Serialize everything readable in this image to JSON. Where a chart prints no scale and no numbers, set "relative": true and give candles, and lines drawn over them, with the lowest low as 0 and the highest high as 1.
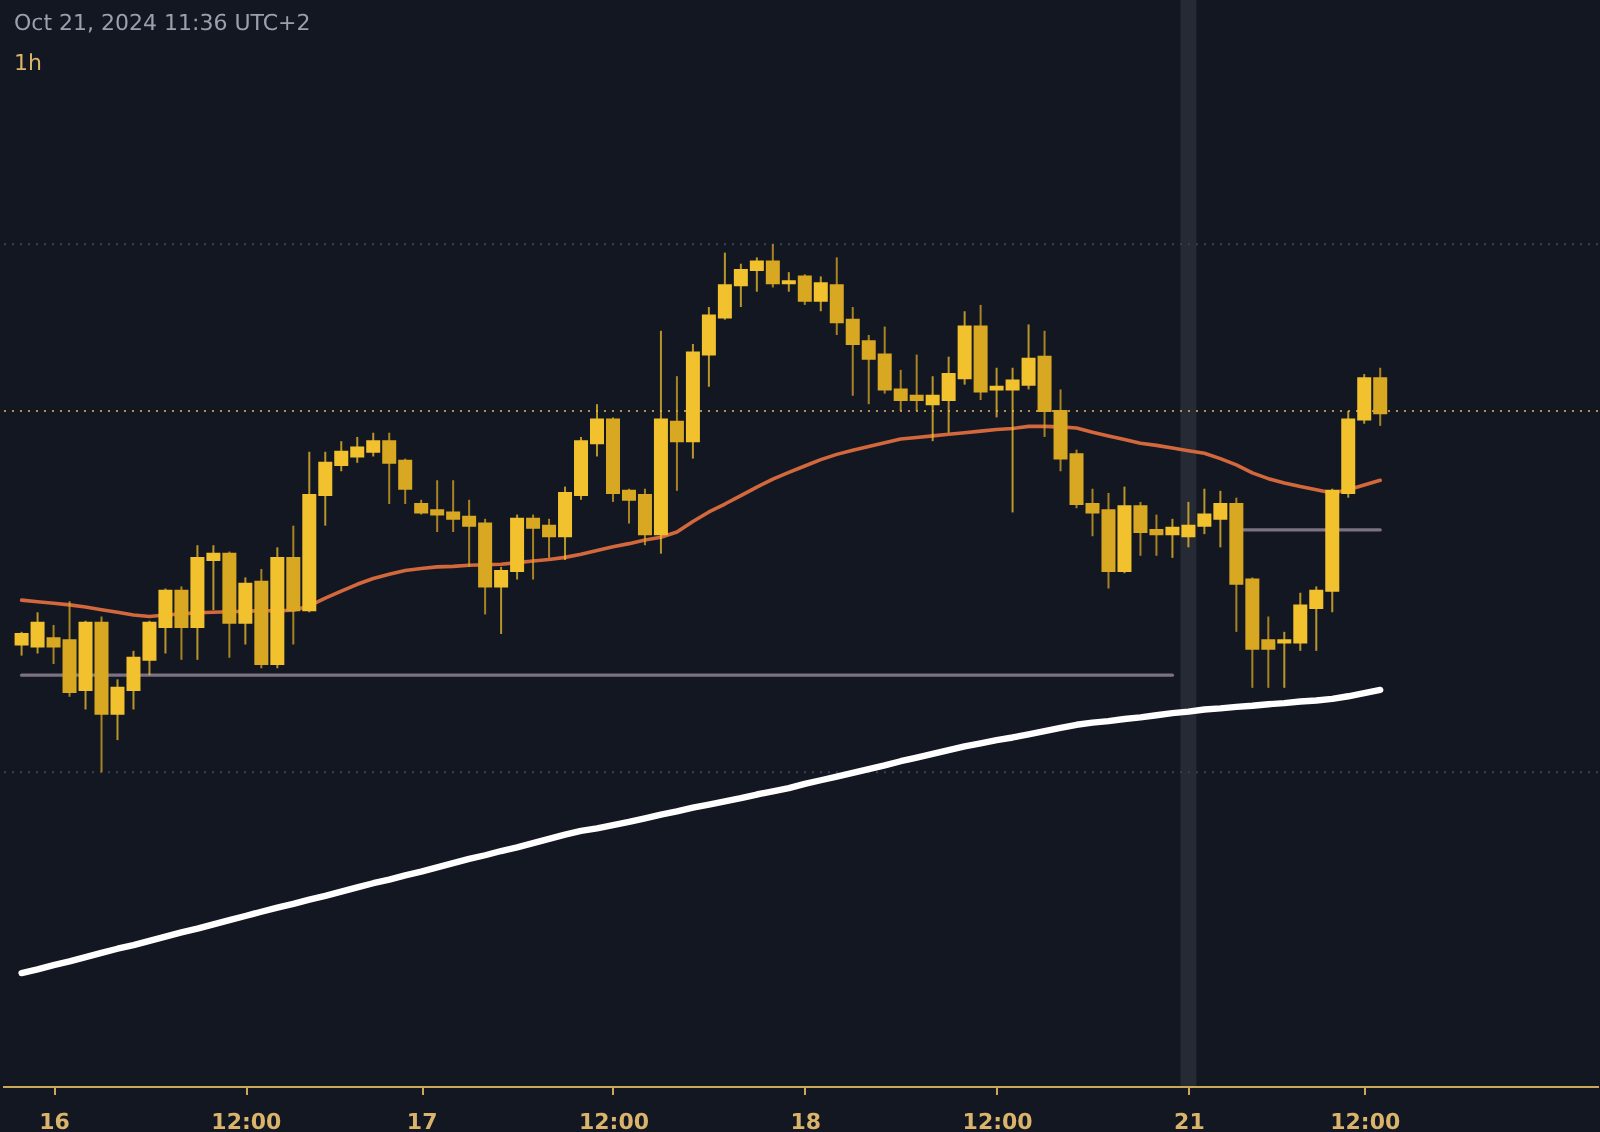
{
  "chart_data": {
    "type": "candlestick",
    "relative": true,
    "colors": [
      "#f2c12e",
      "#f2c12e",
      "#d9a823",
      "#d9a823",
      "#f2c12e",
      "#d9a823",
      "#f2c12e",
      "#f2c12e",
      "#f2c12e",
      "#f2c12e",
      "#d9a823",
      "#f2c12e",
      "#f2c12e",
      "#d9a823",
      "#f2c12e",
      "#d9a823",
      "#f2c12e",
      "#d9a823",
      "#f2c12e",
      "#f2c12e",
      "#f2c12e",
      "#f2c12e",
      "#f2c12e",
      "#d9a823",
      "#d9a823",
      "#d9a823",
      "#d9a823",
      "#d9a823",
      "#d9a823",
      "#d9a823",
      "#f2c12e",
      "#f2c12e",
      "#d9a823",
      "#d9a823",
      "#f2c12e",
      "#f2c12e",
      "#f2c12e",
      "#d9a823",
      "#d9a823",
      "#d9a823",
      "#f2c12e",
      "#d9a823",
      "#f2c12e",
      "#f2c12e",
      "#f2c12e",
      "#f2c12e",
      "#f2c12e",
      "#d9a823",
      "#f2c12e",
      "#d9a823",
      "#f2c12e",
      "#d9a823",
      "#d9a823",
      "#d9a823",
      "#d9a823",
      "#d9a823",
      "#d9a823",
      "#f2c12e",
      "#f2c12e",
      "#f2c12e",
      "#d9a823",
      "#f2c12e",
      "#f2c12e",
      "#f2c12e",
      "#d9a823",
      "#d9a823",
      "#d9a823",
      "#d9a823",
      "#d9a823",
      "#f2c12e",
      "#d9a823",
      "#d9a823",
      "#f2c12e",
      "#f2c12e",
      "#f2c12e",
      "#f2c12e",
      "#d9a823",
      "#d9a823",
      "#d9a823",
      "#f2c12e",
      "#f2c12e",
      "#f2c12e",
      "#f2c12e",
      "#f2c12e",
      "#f2c12e",
      "#d9a823"
    ],
    "annotations": [
      "Oct 21, 2024 11:36 UTC+2",
      "1h"
    ],
    "categories": [
      null,
      null,
      "16",
      null,
      null,
      null,
      null,
      null,
      null,
      null,
      null,
      null,
      null,
      null,
      "12:00",
      null,
      null,
      null,
      null,
      null,
      null,
      null,
      null,
      null,
      null,
      "17",
      null,
      null,
      null,
      null,
      null,
      null,
      null,
      null,
      null,
      null,
      null,
      "12:00",
      null,
      null,
      null,
      null,
      null,
      null,
      null,
      null,
      null,
      null,
      null,
      "18",
      null,
      null,
      null,
      null,
      null,
      null,
      null,
      null,
      null,
      null,
      null,
      "12:00",
      null,
      null,
      null,
      null,
      null,
      null,
      null,
      null,
      null,
      null,
      null,
      "21",
      null,
      null,
      null,
      null,
      null,
      null,
      null,
      null,
      null,
      null,
      "12:00",
      null
    ],
    "ohlc": [
      [
        0.242,
        0.266,
        0.221,
        0.262
      ],
      [
        0.238,
        0.303,
        0.225,
        0.283
      ],
      [
        0.254,
        0.279,
        0.205,
        0.238
      ],
      [
        0.25,
        0.324,
        0.143,
        0.152
      ],
      [
        0.156,
        0.287,
        0.119,
        0.283
      ],
      [
        0.283,
        0.295,
        0.0,
        0.111
      ],
      [
        0.111,
        0.176,
        0.061,
        0.16
      ],
      [
        0.156,
        0.23,
        0.119,
        0.217
      ],
      [
        0.213,
        0.287,
        0.184,
        0.283
      ],
      [
        0.275,
        0.348,
        0.225,
        0.344
      ],
      [
        0.344,
        0.352,
        0.213,
        0.275
      ],
      [
        0.275,
        0.43,
        0.213,
        0.406
      ],
      [
        0.402,
        0.43,
        0.307,
        0.414
      ],
      [
        0.414,
        0.418,
        0.217,
        0.283
      ],
      [
        0.283,
        0.369,
        0.242,
        0.357
      ],
      [
        0.361,
        0.385,
        0.197,
        0.205
      ],
      [
        0.205,
        0.426,
        0.197,
        0.406
      ],
      [
        0.406,
        0.467,
        0.242,
        0.307
      ],
      [
        0.307,
        0.607,
        0.303,
        0.525
      ],
      [
        0.525,
        0.607,
        0.467,
        0.586
      ],
      [
        0.582,
        0.627,
        0.57,
        0.607
      ],
      [
        0.598,
        0.635,
        0.586,
        0.615
      ],
      [
        0.607,
        0.643,
        0.598,
        0.627
      ],
      [
        0.627,
        0.643,
        0.508,
        0.586
      ],
      [
        0.59,
        0.594,
        0.508,
        0.537
      ],
      [
        0.508,
        0.516,
        0.488,
        0.492
      ],
      [
        0.496,
        0.553,
        0.455,
        0.488
      ],
      [
        0.492,
        0.553,
        0.455,
        0.48
      ],
      [
        0.484,
        0.516,
        0.389,
        0.467
      ],
      [
        0.471,
        0.48,
        0.299,
        0.352
      ],
      [
        0.352,
        0.389,
        0.262,
        0.381
      ],
      [
        0.381,
        0.488,
        0.365,
        0.48
      ],
      [
        0.48,
        0.488,
        0.365,
        0.463
      ],
      [
        0.467,
        0.48,
        0.406,
        0.447
      ],
      [
        0.447,
        0.541,
        0.402,
        0.529
      ],
      [
        0.525,
        0.635,
        0.516,
        0.627
      ],
      [
        0.623,
        0.697,
        0.598,
        0.668
      ],
      [
        0.668,
        0.672,
        0.512,
        0.529
      ],
      [
        0.533,
        0.537,
        0.471,
        0.516
      ],
      [
        0.525,
        0.537,
        0.43,
        0.451
      ],
      [
        0.451,
        0.836,
        0.414,
        0.668
      ],
      [
        0.664,
        0.75,
        0.533,
        0.627
      ],
      [
        0.627,
        0.811,
        0.594,
        0.795
      ],
      [
        0.791,
        0.881,
        0.73,
        0.865
      ],
      [
        0.861,
        0.984,
        0.857,
        0.922
      ],
      [
        0.922,
        0.963,
        0.881,
        0.951
      ],
      [
        0.951,
        0.975,
        0.91,
        0.967
      ],
      [
        0.967,
        1.0,
        0.918,
        0.926
      ],
      [
        0.926,
        0.947,
        0.91,
        0.93
      ],
      [
        0.939,
        0.943,
        0.885,
        0.893
      ],
      [
        0.893,
        0.939,
        0.873,
        0.926
      ],
      [
        0.922,
        0.975,
        0.828,
        0.852
      ],
      [
        0.857,
        0.881,
        0.713,
        0.811
      ],
      [
        0.816,
        0.828,
        0.697,
        0.783
      ],
      [
        0.791,
        0.844,
        0.717,
        0.725
      ],
      [
        0.725,
        0.762,
        0.684,
        0.705
      ],
      [
        0.713,
        0.791,
        0.684,
        0.705
      ],
      [
        0.697,
        0.75,
        0.627,
        0.713
      ],
      [
        0.705,
        0.787,
        0.643,
        0.754
      ],
      [
        0.746,
        0.873,
        0.734,
        0.844
      ],
      [
        0.844,
        0.885,
        0.705,
        0.721
      ],
      [
        0.725,
        0.766,
        0.672,
        0.73
      ],
      [
        0.725,
        0.766,
        0.492,
        0.742
      ],
      [
        0.734,
        0.848,
        0.725,
        0.783
      ],
      [
        0.787,
        0.836,
        0.635,
        0.684
      ],
      [
        0.684,
        0.725,
        0.57,
        0.594
      ],
      [
        0.602,
        0.611,
        0.5,
        0.508
      ],
      [
        0.508,
        0.537,
        0.447,
        0.492
      ],
      [
        0.496,
        0.529,
        0.348,
        0.381
      ],
      [
        0.381,
        0.541,
        0.377,
        0.504
      ],
      [
        0.504,
        0.512,
        0.41,
        0.455
      ],
      [
        0.459,
        0.488,
        0.41,
        0.451
      ],
      [
        0.451,
        0.48,
        0.406,
        0.463
      ],
      [
        0.447,
        0.512,
        0.426,
        0.467
      ],
      [
        0.467,
        0.537,
        0.451,
        0.488
      ],
      [
        0.48,
        0.533,
        0.426,
        0.508
      ],
      [
        0.508,
        0.52,
        0.266,
        0.357
      ],
      [
        0.365,
        0.369,
        0.16,
        0.234
      ],
      [
        0.25,
        0.295,
        0.16,
        0.234
      ],
      [
        0.246,
        0.266,
        0.16,
        0.25
      ],
      [
        0.246,
        0.34,
        0.23,
        0.316
      ],
      [
        0.311,
        0.352,
        0.23,
        0.344
      ],
      [
        0.344,
        0.537,
        0.303,
        0.533
      ],
      [
        0.529,
        0.684,
        0.52,
        0.668
      ],
      [
        0.668,
        0.754,
        0.66,
        0.746
      ],
      [
        0.746,
        0.766,
        0.656,
        0.68
      ]
    ],
    "series": [
      {
        "type": "line",
        "color": "#d2683c",
        "values": [
          0.326,
          0.323,
          0.32,
          0.317,
          0.313,
          0.308,
          0.303,
          0.298,
          0.295,
          0.298,
          0.3,
          0.302,
          0.303,
          0.304,
          0.305,
          0.306,
          0.306,
          0.307,
          0.315,
          0.33,
          0.343,
          0.356,
          0.367,
          0.375,
          0.382,
          0.386,
          0.389,
          0.39,
          0.392,
          0.393,
          0.394,
          0.397,
          0.4,
          0.403,
          0.407,
          0.413,
          0.42,
          0.427,
          0.433,
          0.44,
          0.445,
          0.455,
          0.475,
          0.493,
          0.508,
          0.524,
          0.54,
          0.555,
          0.568,
          0.58,
          0.592,
          0.602,
          0.61,
          0.617,
          0.624,
          0.631,
          0.634,
          0.637,
          0.64,
          0.643,
          0.646,
          0.649,
          0.651,
          0.655,
          0.655,
          0.654,
          0.652,
          0.644,
          0.637,
          0.63,
          0.623,
          0.619,
          0.614,
          0.609,
          0.604,
          0.594,
          0.582,
          0.567,
          0.556,
          0.548,
          0.541,
          0.535,
          0.529,
          0.535,
          0.544,
          0.553
        ]
      },
      {
        "type": "line",
        "color": "#ffffff",
        "values": [
          -0.38,
          -0.373,
          -0.365,
          -0.358,
          -0.35,
          -0.342,
          -0.334,
          -0.327,
          -0.319,
          -0.311,
          -0.303,
          -0.296,
          -0.288,
          -0.28,
          -0.272,
          -0.264,
          -0.256,
          -0.249,
          -0.241,
          -0.234,
          -0.226,
          -0.218,
          -0.21,
          -0.203,
          -0.195,
          -0.188,
          -0.18,
          -0.172,
          -0.164,
          -0.157,
          -0.149,
          -0.142,
          -0.134,
          -0.126,
          -0.118,
          -0.111,
          -0.106,
          -0.1,
          -0.094,
          -0.087,
          -0.08,
          -0.074,
          -0.067,
          -0.061,
          -0.055,
          -0.049,
          -0.042,
          -0.036,
          -0.03,
          -0.022,
          -0.015,
          -0.008,
          -0.001,
          0.006,
          0.013,
          0.021,
          0.028,
          0.035,
          0.042,
          0.049,
          0.055,
          0.061,
          0.066,
          0.072,
          0.078,
          0.084,
          0.09,
          0.094,
          0.097,
          0.101,
          0.104,
          0.108,
          0.112,
          0.115,
          0.119,
          0.121,
          0.124,
          0.126,
          0.129,
          0.131,
          0.134,
          0.136,
          0.139,
          0.144,
          0.15,
          0.156
        ]
      },
      {
        "type": "line",
        "color": "#7d7282",
        "values": [
          0.184,
          0.184,
          0.184,
          0.184,
          0.184,
          0.184,
          0.184,
          0.184,
          0.184,
          0.184,
          0.184,
          0.184,
          0.184,
          0.184,
          0.184,
          0.184,
          0.184,
          0.184,
          0.184,
          0.184,
          0.184,
          0.184,
          0.184,
          0.184,
          0.184,
          0.184,
          0.184,
          0.184,
          0.184,
          0.184,
          0.184,
          0.184,
          0.184,
          0.184,
          0.184,
          0.184,
          0.184,
          0.184,
          0.184,
          0.184,
          0.184,
          0.184,
          0.184,
          0.184,
          0.184,
          0.184,
          0.184,
          0.184,
          0.184,
          0.184,
          0.184,
          0.184,
          0.184,
          0.184,
          0.184,
          0.184,
          0.184,
          0.184,
          0.184,
          0.184,
          0.184,
          0.184,
          0.184,
          0.184,
          0.184,
          0.184,
          0.184,
          0.184,
          0.184,
          0.184,
          0.184,
          0.184,
          0.184,
          null,
          null,
          null,
          null,
          null,
          null,
          null,
          null,
          null,
          null,
          null,
          null,
          null
        ]
      },
      {
        "type": "line",
        "color": "#7d7282",
        "values": [
          null,
          null,
          null,
          null,
          null,
          null,
          null,
          null,
          null,
          null,
          null,
          null,
          null,
          null,
          null,
          null,
          null,
          null,
          null,
          null,
          null,
          null,
          null,
          null,
          null,
          null,
          null,
          null,
          null,
          null,
          null,
          null,
          null,
          null,
          null,
          null,
          null,
          null,
          null,
          null,
          null,
          null,
          null,
          null,
          null,
          null,
          null,
          null,
          null,
          null,
          null,
          null,
          null,
          null,
          null,
          null,
          null,
          null,
          null,
          null,
          null,
          null,
          null,
          null,
          null,
          null,
          null,
          null,
          null,
          null,
          null,
          null,
          null,
          null,
          null,
          null,
          0.459,
          0.459,
          0.459,
          0.459,
          0.459,
          0.459,
          0.459,
          0.459,
          0.459,
          0.459
        ]
      }
    ],
    "ref_lines": [
      {
        "axis": "y",
        "value": 0.684,
        "color": "#b8904a",
        "line_style": "dotted"
      },
      {
        "axis": "y",
        "value": 1.0,
        "color": "#3a3f4c",
        "line_style": "dotted"
      },
      {
        "axis": "y",
        "value": 0.0,
        "color": "#3a3f4c",
        "line_style": "dotted"
      }
    ],
    "bands": [
      {
        "axis": "x",
        "from": "21",
        "to": "21",
        "color": "#262a35"
      }
    ]
  }
}
